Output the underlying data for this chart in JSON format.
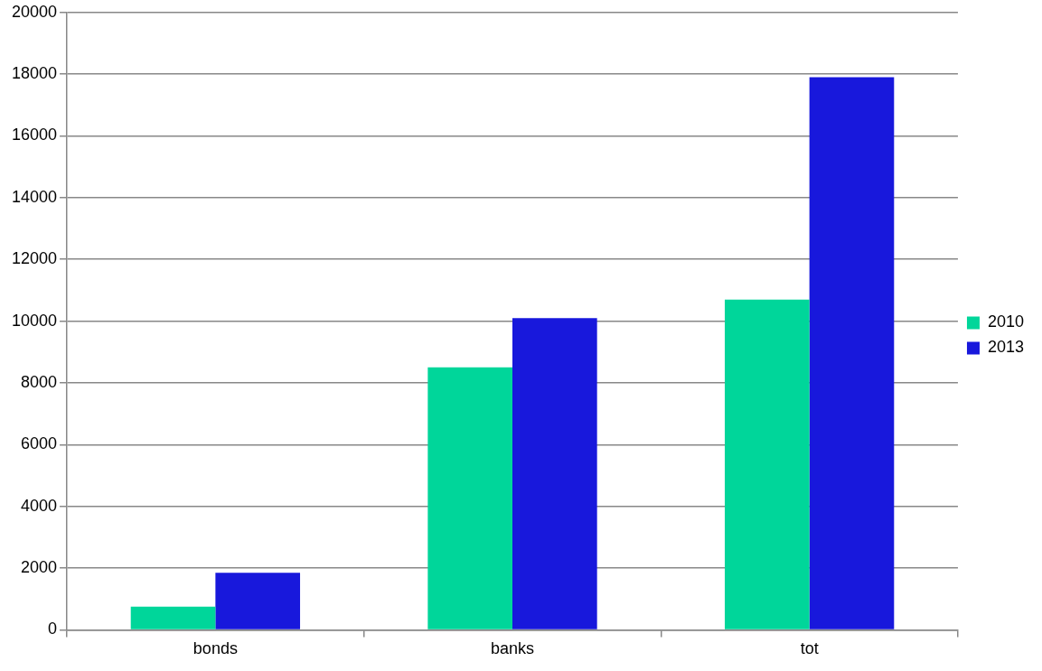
{
  "chart_data": {
    "type": "bar",
    "categories": [
      "bonds",
      "banks",
      "tot"
    ],
    "series": [
      {
        "name": "2010",
        "color": "#00d69a",
        "values": [
          750,
          8500,
          10700
        ]
      },
      {
        "name": "2013",
        "color": "#1818dc",
        "values": [
          1850,
          10100,
          17900
        ]
      }
    ],
    "ylim": [
      0,
      20000
    ],
    "yticks": [
      0,
      2000,
      4000,
      6000,
      8000,
      10000,
      12000,
      14000,
      16000,
      18000,
      20000
    ],
    "grid": "y",
    "legend": "right"
  }
}
